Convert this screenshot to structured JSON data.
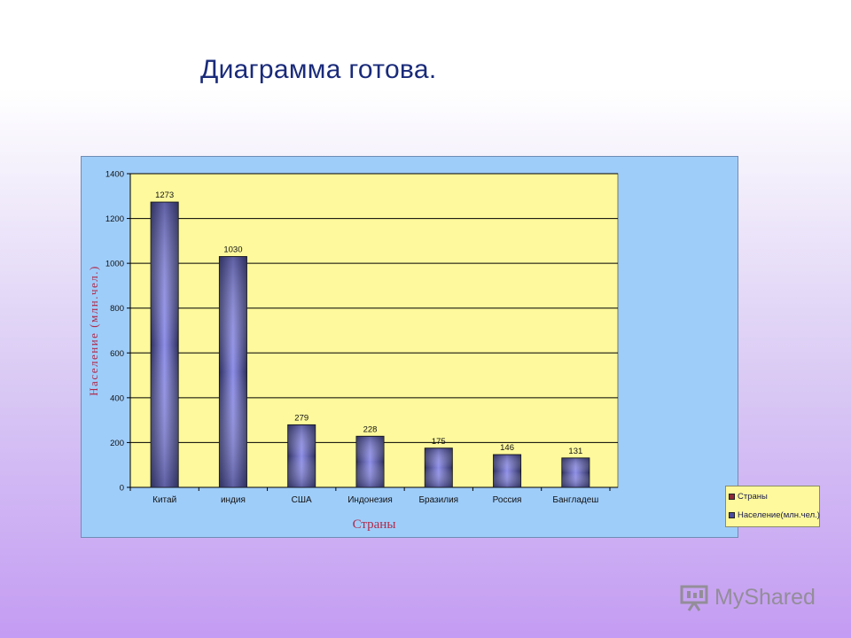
{
  "slide": {
    "title": "Диаграмма готова."
  },
  "legend": {
    "items": [
      {
        "label": "Страны",
        "color": "#8b2a3a"
      },
      {
        "label": "Население(млн.чел.)",
        "color": "#4a4aa0"
      }
    ]
  },
  "watermark": {
    "text": "MyShared",
    "icon": "presentation-icon"
  },
  "colors": {
    "frame": "#9fcdfa",
    "plot": "#fdf99c",
    "bar_dark": "#2f3160",
    "bar_light": "#8e8ee8",
    "axis_title": "#b02a4a",
    "slide_title": "#1a2b7a"
  },
  "chart_data": {
    "type": "bar",
    "categories": [
      "Китай",
      "индия",
      "США",
      "Индонезия",
      "Бразилия",
      "Россия",
      "Бангладеш"
    ],
    "series": [
      {
        "name": "Население(млн.чел.)",
        "values": [
          1273,
          1030,
          279,
          228,
          175,
          146,
          131
        ]
      }
    ],
    "data_labels": [
      "1273",
      "1030",
      "279",
      "228",
      "175",
      "146",
      "131"
    ],
    "xlabel": "Страны",
    "ylabel": "Население (млн.чел.)",
    "ylim": [
      0,
      1400
    ],
    "yticks": [
      0,
      200,
      400,
      600,
      800,
      1000,
      1200,
      1400
    ],
    "grid": true,
    "legend_position": "right"
  }
}
